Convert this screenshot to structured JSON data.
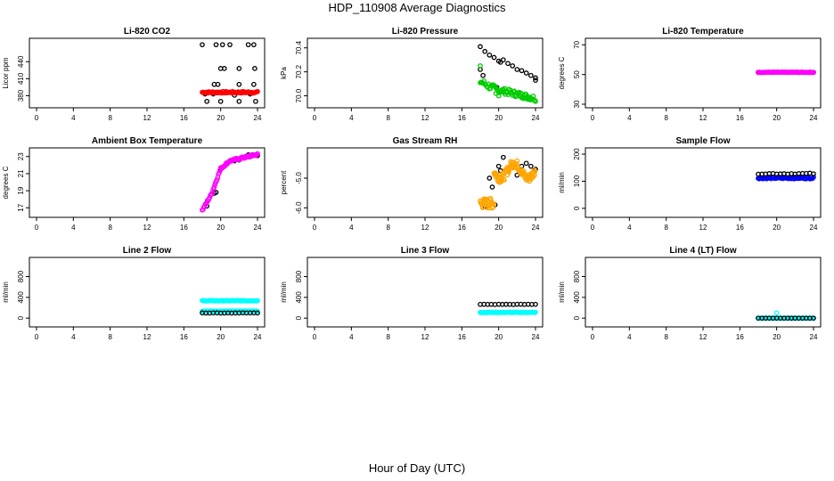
{
  "title": "HDP_110908  Average Diagnostics",
  "xlabel": "Hour of Day (UTC)",
  "colors": {
    "black": "#000000",
    "red": "#ff0000",
    "green": "#00cc00",
    "magenta": "#ff00ff",
    "orange": "#ffa500",
    "blue": "#0000ff",
    "cyan": "#00ffff"
  },
  "chart_data": [
    {
      "type": "scatter",
      "title": "Li-820 CO2",
      "ylabel": "Licor ppm",
      "xlim": [
        0,
        24
      ],
      "ylim": [
        365,
        475
      ],
      "xticks": [
        "0",
        "4",
        "8",
        "12",
        "16",
        "20",
        "24"
      ],
      "yticks": [
        {
          "v": 380,
          "l": "380"
        },
        {
          "v": 410,
          "l": "410"
        },
        {
          "v": 440,
          "l": "440"
        }
      ],
      "series": [
        {
          "name": "black",
          "color": "black",
          "points": [
            [
              18,
              470
            ],
            [
              19.5,
              470
            ],
            [
              20.2,
              470
            ],
            [
              21,
              470
            ],
            [
              23,
              470
            ],
            [
              23.6,
              470
            ],
            [
              19.3,
              400
            ],
            [
              19.7,
              400
            ],
            [
              22,
              400
            ],
            [
              23.6,
              400
            ],
            [
              20,
              428
            ],
            [
              20.4,
              428
            ],
            [
              22,
              428
            ],
            [
              23.7,
              428
            ],
            [
              18.5,
              370
            ],
            [
              20,
              370
            ],
            [
              22,
              370
            ],
            [
              23.8,
              370
            ],
            [
              18.3,
              383
            ],
            [
              19.2,
              383
            ],
            [
              21.5,
              381
            ],
            [
              23.2,
              383
            ]
          ]
        },
        {
          "name": "red",
          "color": "red",
          "points": "gen:18:24:0.1:386:1.5"
        }
      ]
    },
    {
      "type": "scatter",
      "title": "Li-820 Pressure",
      "ylabel": "kPa",
      "xlim": [
        0,
        24
      ],
      "ylim": [
        69.93,
        70.45
      ],
      "xticks": [
        "0",
        "4",
        "8",
        "12",
        "16",
        "20",
        "24"
      ],
      "yticks": [
        {
          "v": 70.0,
          "l": "70.0"
        },
        {
          "v": 70.2,
          "l": "70.2"
        },
        {
          "v": 70.4,
          "l": "70.4"
        }
      ],
      "series": [
        {
          "name": "black",
          "color": "black",
          "points": [
            [
              18,
              70.41
            ],
            [
              18.5,
              70.37
            ],
            [
              19,
              70.34
            ],
            [
              19.5,
              70.32
            ],
            [
              20,
              70.29
            ],
            [
              20.2,
              70.28
            ],
            [
              20.5,
              70.3
            ],
            [
              21,
              70.27
            ],
            [
              21.5,
              70.25
            ],
            [
              22,
              70.22
            ],
            [
              22.5,
              70.21
            ],
            [
              23,
              70.19
            ],
            [
              23.5,
              70.17
            ],
            [
              24,
              70.15
            ],
            [
              24,
              70.13
            ],
            [
              18,
              70.22
            ],
            [
              18.3,
              70.17
            ],
            [
              19.8,
              70.07
            ]
          ]
        },
        {
          "name": "green",
          "color": "green",
          "points": "gen-green"
        }
      ]
    },
    {
      "type": "scatter",
      "title": "Li-820 Temperature",
      "ylabel": "degrees C",
      "xlim": [
        0,
        24
      ],
      "ylim": [
        30,
        72
      ],
      "xticks": [
        "0",
        "4",
        "8",
        "12",
        "16",
        "20",
        "24"
      ],
      "yticks": [
        {
          "v": 30,
          "l": "30"
        },
        {
          "v": 50,
          "l": "50"
        },
        {
          "v": 70,
          "l": "70"
        }
      ],
      "series": [
        {
          "name": "black",
          "color": "black",
          "points": "gen:18:24:0.4:51.5:0"
        },
        {
          "name": "magenta",
          "color": "magenta",
          "points": "gen:18:24:0.1:51.5:0.2"
        }
      ]
    },
    {
      "type": "scatter",
      "title": "Ambient Box Temperature",
      "ylabel": "degrees C",
      "xlim": [
        0,
        24
      ],
      "ylim": [
        16.3,
        23.6
      ],
      "xticks": [
        "0",
        "4",
        "8",
        "12",
        "16",
        "20",
        "24"
      ],
      "yticks": [
        {
          "v": 17,
          "l": "17"
        },
        {
          "v": 19,
          "l": "19"
        },
        {
          "v": 21,
          "l": "21"
        },
        {
          "v": 23,
          "l": "23"
        }
      ],
      "series": [
        {
          "name": "black",
          "color": "black",
          "points": [
            [
              18.5,
              17.2
            ],
            [
              19,
              18.6
            ],
            [
              19.3,
              18.7
            ],
            [
              19.5,
              18.8
            ],
            [
              20,
              21.5
            ],
            [
              20.2,
              21.7
            ],
            [
              21,
              22.5
            ],
            [
              21.5,
              22.5
            ],
            [
              22,
              22.6
            ],
            [
              23,
              23.2
            ],
            [
              23.5,
              23.2
            ],
            [
              24,
              23.1
            ]
          ]
        },
        {
          "name": "magenta",
          "color": "magenta",
          "points": "gen-ambient"
        }
      ]
    },
    {
      "type": "scatter",
      "title": "Gas Stream RH",
      "ylabel": "percent",
      "xlim": [
        0,
        24
      ],
      "ylim": [
        -6.2,
        -4.1
      ],
      "xticks": [
        "0",
        "4",
        "8",
        "12",
        "16",
        "20",
        "24"
      ],
      "yticks": [
        {
          "v": -6,
          "l": "-6.0"
        },
        {
          "v": -5,
          "l": "-5.0"
        }
      ],
      "series": [
        {
          "name": "black",
          "color": "black",
          "points": [
            [
              18.5,
              -5.95
            ],
            [
              19,
              -5.0
            ],
            [
              19.3,
              -5.3
            ],
            [
              19.6,
              -5.9
            ],
            [
              20,
              -4.6
            ],
            [
              20.5,
              -4.3
            ],
            [
              21,
              -4.7
            ],
            [
              21.5,
              -4.6
            ],
            [
              22,
              -4.9
            ],
            [
              22.5,
              -4.6
            ],
            [
              23,
              -4.5
            ],
            [
              23.5,
              -4.6
            ],
            [
              24,
              -4.7
            ],
            [
              20.2,
              -4.75
            ]
          ]
        },
        {
          "name": "orange",
          "color": "orange",
          "points": "gen-rh"
        }
      ]
    },
    {
      "type": "scatter",
      "title": "Sample Flow",
      "ylabel": "ml/min",
      "xlim": [
        0,
        24
      ],
      "ylim": [
        -20,
        210
      ],
      "xticks": [
        "0",
        "4",
        "8",
        "12",
        "16",
        "20",
        "24"
      ],
      "yticks": [
        {
          "v": 0,
          "l": "0"
        },
        {
          "v": 100,
          "l": "100"
        },
        {
          "v": 200,
          "l": "200"
        }
      ],
      "series": [
        {
          "name": "blue",
          "color": "blue",
          "points": "gen:18:24:0.1:112:3"
        },
        {
          "name": "black",
          "color": "black",
          "points": "gen:18:24:0.4:128:2"
        }
      ]
    },
    {
      "type": "scatter",
      "title": "Line 2 Flow",
      "ylabel": "ml/min",
      "xlim": [
        0,
        24
      ],
      "ylim": [
        -100,
        1100
      ],
      "xticks": [
        "0",
        "4",
        "8",
        "12",
        "16",
        "20",
        "24"
      ],
      "yticks": [
        {
          "v": 0,
          "l": "0"
        },
        {
          "v": 400,
          "l": "400"
        },
        {
          "v": 800,
          "l": "800"
        }
      ],
      "series": [
        {
          "name": "cyan",
          "color": "cyan",
          "points": "gen:18:24:0.1:335:6"
        },
        {
          "name": "cyan2",
          "color": "cyan",
          "points": "gen:18:24:0.1:135:4"
        },
        {
          "name": "black",
          "color": "black",
          "points": "gen:18:24:0.4:100:3"
        }
      ]
    },
    {
      "type": "scatter",
      "title": "Line 3 Flow",
      "ylabel": "ml/min",
      "xlim": [
        0,
        24
      ],
      "ylim": [
        -100,
        1100
      ],
      "xticks": [
        "0",
        "4",
        "8",
        "12",
        "16",
        "20",
        "24"
      ],
      "yticks": [
        {
          "v": 0,
          "l": "0"
        },
        {
          "v": 400,
          "l": "400"
        },
        {
          "v": 800,
          "l": "800"
        }
      ],
      "series": [
        {
          "name": "cyan",
          "color": "cyan",
          "points": "gen:18:24:0.1:110:5"
        },
        {
          "name": "black",
          "color": "black",
          "points": "gen:18:24:0.4:265:3"
        }
      ]
    },
    {
      "type": "scatter",
      "title": "Line 4 (LT) Flow",
      "ylabel": "ml/min",
      "xlim": [
        0,
        24
      ],
      "ylim": [
        -100,
        1100
      ],
      "xticks": [
        "0",
        "4",
        "8",
        "12",
        "16",
        "20",
        "24"
      ],
      "yticks": [
        {
          "v": 0,
          "l": "0"
        },
        {
          "v": 400,
          "l": "400"
        },
        {
          "v": 800,
          "l": "800"
        }
      ],
      "series": [
        {
          "name": "cyan",
          "color": "cyan",
          "points": "gen:18:24:0.1:0:2"
        },
        {
          "name": "cyan-spike",
          "color": "cyan",
          "points": [
            [
              20,
              100
            ]
          ]
        },
        {
          "name": "black",
          "color": "black",
          "points": "gen:18:24:0.4:0:0"
        }
      ]
    }
  ]
}
